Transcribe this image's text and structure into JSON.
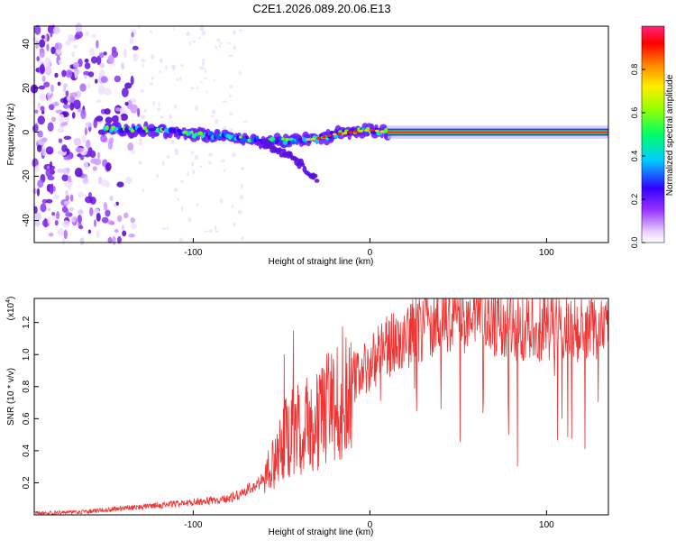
{
  "title": "C2E1.2026.089.20.06.E13",
  "colors": {
    "line": "#ee3333",
    "axis": "#000000",
    "background": "#ffffff"
  },
  "chart_data": [
    {
      "type": "heatmap",
      "title": "C2E1.2026.089.20.06.E13",
      "xlabel": "Height of straight line (km)",
      "ylabel": "Frequency (Hz)",
      "xlim": [
        -190,
        135
      ],
      "ylim": [
        -50,
        48
      ],
      "x_ticks": [
        -100,
        0,
        100
      ],
      "y_ticks": [
        -40,
        -20,
        0,
        20,
        40
      ],
      "features": [
        {
          "name": "scatter-noise-region",
          "x_range": [
            -190,
            -130
          ],
          "freq_range": [
            -50,
            48
          ]
        },
        {
          "name": "doppler-track",
          "points": [
            [
              -150,
              1
            ],
            [
              -120,
              1
            ],
            [
              -100,
              -1
            ],
            [
              -80,
              -2
            ],
            [
              -60,
              -4
            ],
            [
              -45,
              -4
            ],
            [
              -30,
              -3
            ],
            [
              -20,
              -1
            ],
            [
              -10,
              0
            ],
            [
              0,
              1
            ],
            [
              10,
              0
            ],
            [
              135,
              0
            ]
          ]
        },
        {
          "name": "lower-branch",
          "points": [
            [
              -60,
              -5
            ],
            [
              -50,
              -9
            ],
            [
              -40,
              -14
            ],
            [
              -30,
              -21
            ]
          ]
        }
      ],
      "colorbar": {
        "label": "Normalized spectral amplitude",
        "range": [
          0.0,
          1.0
        ],
        "ticks": [
          "0.0",
          "0.2",
          "0.4",
          "0.6",
          "0.8"
        ]
      }
    },
    {
      "type": "line",
      "xlabel": "Height of straight line (km)",
      "ylabel": "SNR (10 * v/v)",
      "y_scale_note": "(x10",
      "y_scale_exp": "4",
      "xlim": [
        -190,
        135
      ],
      "ylim": [
        0.0,
        1.35
      ],
      "x_ticks": [
        -100,
        0,
        100
      ],
      "y_ticks": [
        "0.2",
        "0.4",
        "0.6",
        "0.8",
        "1.0",
        "1.2"
      ],
      "envelope": {
        "x": [
          -190,
          -160,
          -140,
          -120,
          -100,
          -80,
          -70,
          -60,
          -50,
          -40,
          -30,
          -20,
          -10,
          0,
          10,
          20,
          30,
          40,
          50,
          60,
          80,
          100,
          120,
          135
        ],
        "y": [
          0.01,
          0.02,
          0.04,
          0.06,
          0.08,
          0.1,
          0.15,
          0.22,
          0.45,
          0.55,
          0.6,
          0.7,
          0.85,
          0.95,
          1.05,
          1.1,
          1.18,
          1.22,
          1.24,
          1.22,
          1.17,
          1.18,
          1.17,
          1.16
        ]
      }
    }
  ]
}
